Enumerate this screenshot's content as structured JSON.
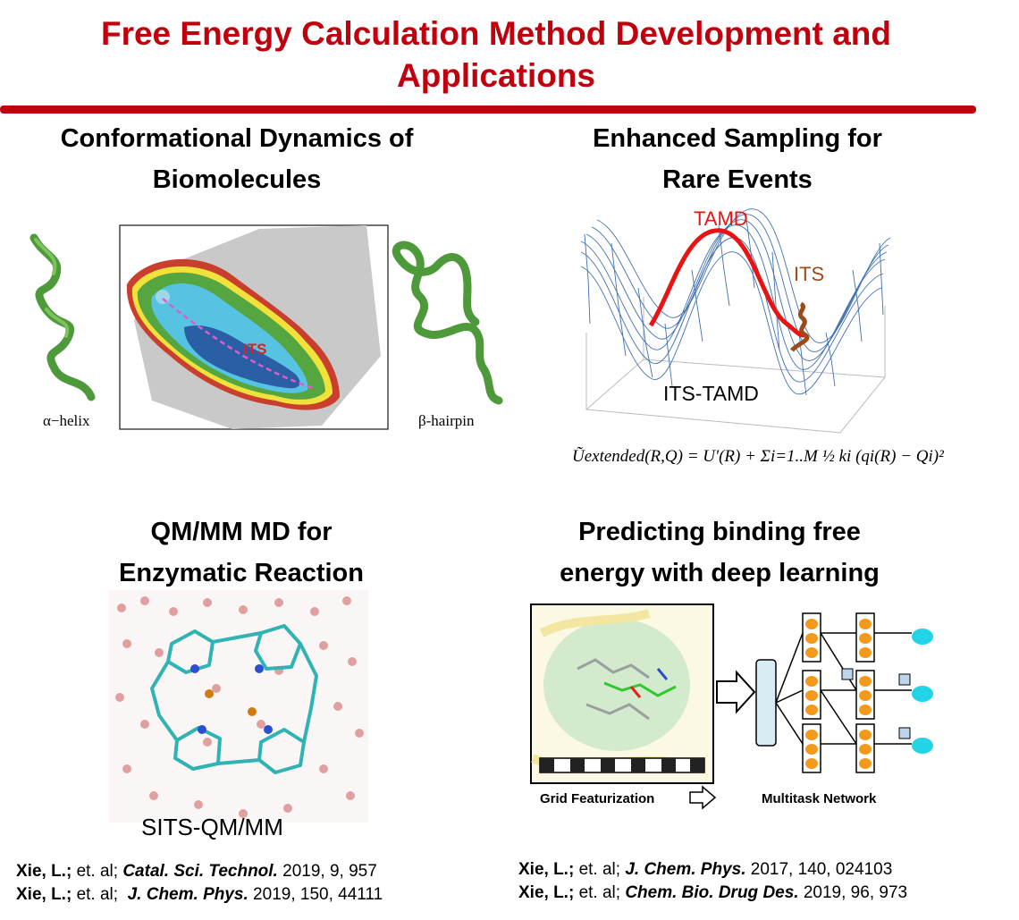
{
  "title": {
    "line1": "Free Energy Calculation Method Development and",
    "line2": "Applications"
  },
  "sections": {
    "conformational": {
      "heading_line1": "Conformational Dynamics of",
      "heading_line2": "Biomolecules",
      "label_its": "ITS",
      "label_helix": "α−helix",
      "label_hairpin": "β-hairpin"
    },
    "enhanced": {
      "heading_line1": "Enhanced Sampling for",
      "heading_line2": "Rare Events",
      "label_tamd": "TAMD",
      "label_its": "ITS",
      "label_its_tamd": "ITS-TAMD"
    },
    "qmmm": {
      "heading_line1": "QM/MM MD for",
      "heading_line2": "Enzymatic Reaction",
      "label_sits": "SITS-QM/MM"
    },
    "deep": {
      "heading_line1": "Predicting binding free",
      "heading_line2": "energy with deep learning",
      "label_grid": "Grid Featurization",
      "label_net": "Multitask Network"
    }
  },
  "equation": "Ũextended(R,Q) = U'(R) + Σi=1..M ½ ki (qi(R) − Qi)²",
  "references": {
    "left": [
      {
        "author": "Xie, L.;",
        "etal": " et. al; ",
        "journal": "Catal. Sci. Technol.",
        "rest": " 2019, 9, 957"
      },
      {
        "author": "Xie, L.;",
        "etal": " et. al;  ",
        "journal": "J. Chem. Phys.",
        "rest": " 2019, 150, 44111"
      }
    ],
    "right": [
      {
        "author": "Xie, L.;",
        "etal": " et. al; ",
        "journal": "J. Chem. Phys.",
        "rest": " 2017, 140, 024103"
      },
      {
        "author": "Xie, L.;",
        "etal": " et. al; ",
        "journal": "Chem. Bio. Drug Des.",
        "rest": " 2019, 96, 973"
      }
    ]
  }
}
